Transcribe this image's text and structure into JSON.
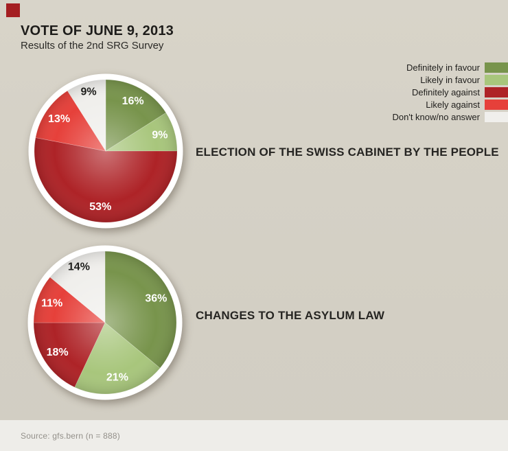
{
  "brand": {
    "logo_color": "#a41e21"
  },
  "header": {
    "title": "VOTE OF JUNE 9, 2013",
    "subtitle": "Results of the 2nd SRG Survey"
  },
  "legend": {
    "position": "top-right",
    "items": [
      {
        "label": "Definitely in favour",
        "color": "#78944c"
      },
      {
        "label": "Likely in favour",
        "color": "#a8c67c"
      },
      {
        "label": "Definitely against",
        "color": "#ae2327"
      },
      {
        "label": "Likely against",
        "color": "#e6403a"
      },
      {
        "label": "Don't know/no answer",
        "color": "#f0efec"
      }
    ]
  },
  "chart_data": [
    {
      "type": "pie",
      "title": "ELECTION OF THE SWISS CABINET BY THE PEOPLE",
      "categories": [
        "Definitely in favour",
        "Likely in favour",
        "Definitely against",
        "Likely against",
        "Don't know/no answer"
      ],
      "values": [
        16,
        9,
        53,
        13,
        9
      ],
      "unit": "%",
      "slice_labels": [
        "16%",
        "9%",
        "53%",
        "13%",
        "9%"
      ],
      "colors": [
        "#78944c",
        "#a8c67c",
        "#ae2327",
        "#e6403a",
        "#f0efec"
      ],
      "label_colors": [
        "#ffffff",
        "#ffffff",
        "#ffffff",
        "#ffffff",
        "#1d1d1b"
      ],
      "start_angle_deg": 0,
      "direction": "clockwise"
    },
    {
      "type": "pie",
      "title": "CHANGES TO THE ASYLUM LAW",
      "categories": [
        "Definitely in favour",
        "Likely in favour",
        "Definitely against",
        "Likely against",
        "Don't know/no answer"
      ],
      "values": [
        36,
        21,
        18,
        11,
        14
      ],
      "unit": "%",
      "slice_labels": [
        "36%",
        "21%",
        "18%",
        "11%",
        "14%"
      ],
      "colors": [
        "#78944c",
        "#a8c67c",
        "#ae2327",
        "#e6403a",
        "#f0efec"
      ],
      "label_colors": [
        "#ffffff",
        "#ffffff",
        "#ffffff",
        "#ffffff",
        "#1d1d1b"
      ],
      "start_angle_deg": 0,
      "direction": "clockwise"
    }
  ],
  "footer": {
    "source": "Source: gfs.bern (n = 888)"
  }
}
